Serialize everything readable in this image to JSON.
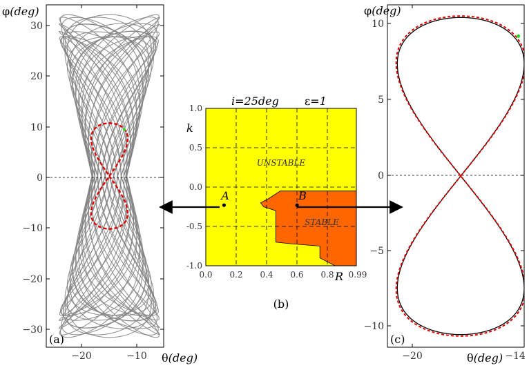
{
  "chart_data": [
    {
      "id": "a",
      "type": "line",
      "panel_label": "(a)",
      "xlabel_sym": "θ",
      "xlabel_unit": "(deg)",
      "ylabel_sym": "φ",
      "ylabel_unit": "(deg)",
      "xticks": [
        "−20",
        "−10"
      ],
      "yticks": [
        "30",
        "20",
        "10",
        "0",
        "−10",
        "−20",
        "−30"
      ],
      "xlim": [
        -25.5,
        -8.2
      ],
      "ylim": [
        -35,
        35
      ],
      "series": [
        {
          "style": "grey-tangle",
          "envelope_half_width": 7.4,
          "amplitude": 33,
          "color": "#808080"
        },
        {
          "style": "red-dashed",
          "figure8": {
            "cx": -16.2,
            "a": 2.7,
            "b": 10.8
          },
          "color": "#e00000"
        }
      ],
      "marker": {
        "x": -14.0,
        "y": 9.5,
        "color": "#22dd22"
      }
    },
    {
      "id": "b",
      "type": "area",
      "title_left": "i=25deg",
      "title_right_sym": "ε",
      "title_right_val": "=1",
      "xlabel": "R",
      "ylabel": "k",
      "xticks": [
        "0.0",
        "0.2",
        "0.4",
        "0.6",
        "0.8",
        "0.99"
      ],
      "yticks": [
        "1.0",
        "0.5",
        "0.0",
        "-0.5",
        "-1.0"
      ],
      "xlim": [
        0,
        0.99
      ],
      "ylim": [
        -1,
        1
      ],
      "regions": [
        {
          "label": "UNSTABLE",
          "color": "#ffff00"
        },
        {
          "label": "STABLE",
          "color": "#ff6600",
          "polygon": [
            [
              0.36,
              -0.2
            ],
            [
              0.41,
              -0.15
            ],
            [
              0.49,
              -0.05
            ],
            [
              0.99,
              -0.05
            ],
            [
              0.99,
              -1.0
            ],
            [
              0.85,
              -1.0
            ],
            [
              0.75,
              -0.9
            ],
            [
              0.75,
              -0.75
            ],
            [
              0.56,
              -0.72
            ],
            [
              0.46,
              -0.7
            ],
            [
              0.46,
              -0.3
            ],
            [
              0.38,
              -0.25
            ]
          ]
        }
      ],
      "points": [
        {
          "label": "A",
          "x": 0.12,
          "y": -0.23
        },
        {
          "label": "B",
          "x": 0.6,
          "y": -0.23
        }
      ],
      "panel_label": "(b)"
    },
    {
      "id": "c",
      "type": "line",
      "panel_label": "(c)",
      "xlabel_sym": "θ",
      "xlabel_unit": "(deg)",
      "ylabel_sym": "φ",
      "ylabel_unit": "(deg)",
      "xticks": [
        "−20",
        "−14"
      ],
      "yticks": [
        "10",
        "5",
        "0",
        "−5",
        "−10"
      ],
      "xlim": [
        -22.2,
        -13.9
      ],
      "ylim": [
        -11.5,
        11.5
      ],
      "series": [
        {
          "style": "black-solid",
          "figure8": {
            "cx": -17.75,
            "a": 3.85,
            "b": 10.65
          },
          "color": "#000000"
        },
        {
          "style": "red-dashed",
          "figure8": {
            "cx": -17.75,
            "a": 3.92,
            "b": 10.75
          },
          "color": "#e00000"
        }
      ],
      "marker": {
        "x": -14.25,
        "y": 9.4,
        "color": "#22dd22"
      }
    }
  ]
}
